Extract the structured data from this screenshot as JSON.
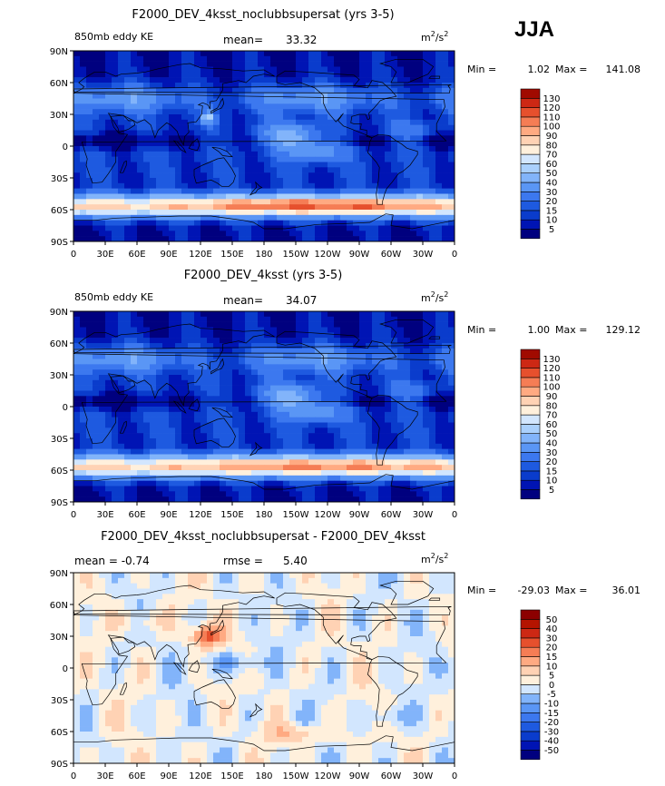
{
  "season": "JJA",
  "units": {
    "base": "m",
    "exp": "2",
    "den": "s",
    "den_exp": "2"
  },
  "colors": {
    "frame": "#000000",
    "land": "#ffffff",
    "coast": "#000000"
  },
  "lon_ticks": [
    "0",
    "30E",
    "60E",
    "90E",
    "120E",
    "150E",
    "180",
    "150W",
    "120W",
    "90W",
    "60W",
    "30W",
    "0"
  ],
  "lat_ticks": [
    "90N",
    "60N",
    "30N",
    "0",
    "30S",
    "60S",
    "90S"
  ],
  "chart_data": [
    {
      "type": "heatmap",
      "title": "F2000_DEV_4ksst_noclubbsupersat (yrs 3-5)",
      "left_label": "850mb eddy KE",
      "stat_label": "mean=",
      "stat_value": "33.32",
      "min_label": "Min =",
      "min_value": "1.02",
      "max_label": "Max =",
      "max_value": "141.08",
      "levels": [
        "5",
        "10",
        "15",
        "20",
        "30",
        "40",
        "50",
        "60",
        "70",
        "80",
        "90",
        "100",
        "110",
        "120",
        "130"
      ],
      "colors": [
        "#00007f",
        "#0014b4",
        "#0a3ccc",
        "#1e5ae0",
        "#3c78ef",
        "#5a96f5",
        "#82b4fa",
        "#aad0fc",
        "#d2e6fe",
        "#fff0dc",
        "#ffd2b4",
        "#ffaa82",
        "#f57d55",
        "#e6502d",
        "#cd2814",
        "#a00a00"
      ],
      "xlim": [
        0,
        360
      ],
      "ylim": [
        -90,
        90
      ]
    },
    {
      "type": "heatmap",
      "title": "F2000_DEV_4ksst (yrs 3-5)",
      "left_label": "850mb eddy KE",
      "stat_label": "mean=",
      "stat_value": "34.07",
      "min_label": "Min =",
      "min_value": "1.00",
      "max_label": "Max =",
      "max_value": "129.12",
      "levels": [
        "5",
        "10",
        "15",
        "20",
        "30",
        "40",
        "50",
        "60",
        "70",
        "80",
        "90",
        "100",
        "110",
        "120",
        "130"
      ],
      "colors": [
        "#00007f",
        "#0014b4",
        "#0a3ccc",
        "#1e5ae0",
        "#3c78ef",
        "#5a96f5",
        "#82b4fa",
        "#aad0fc",
        "#d2e6fe",
        "#fff0dc",
        "#ffd2b4",
        "#ffaa82",
        "#f57d55",
        "#e6502d",
        "#cd2814",
        "#a00a00"
      ],
      "xlim": [
        0,
        360
      ],
      "ylim": [
        -90,
        90
      ]
    },
    {
      "type": "heatmap",
      "title": "F2000_DEV_4ksst_noclubbsupersat - F2000_DEV_4ksst",
      "left_label": "mean =   -0.74",
      "stat_label": "rmse =",
      "stat_value": "5.40",
      "min_label": "Min =",
      "min_value": "-29.03",
      "max_label": "Max =",
      "max_value": "36.01",
      "levels": [
        "-50",
        "-40",
        "-30",
        "-20",
        "-15",
        "-10",
        "-5",
        "0",
        "5",
        "10",
        "15",
        "20",
        "30",
        "40",
        "50"
      ],
      "colors": [
        "#00007f",
        "#0014b4",
        "#0a3ccc",
        "#1e5ae0",
        "#3c78ef",
        "#5a96f5",
        "#82b4fa",
        "#d2e6fe",
        "#fff0dc",
        "#ffd2b4",
        "#ffaa82",
        "#f57d55",
        "#e6502d",
        "#cd2814",
        "#b41400",
        "#8c0000"
      ],
      "xlim": [
        0,
        360
      ],
      "ylim": [
        -90,
        90
      ]
    }
  ]
}
